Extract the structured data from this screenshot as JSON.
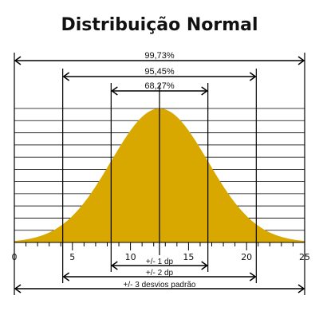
{
  "chart_data": {
    "type": "area",
    "title": "Distribuição Normal",
    "mean": 12.5,
    "sd": 4.167,
    "xlim": [
      0,
      25
    ],
    "x_ticks": [
      0,
      5,
      10,
      15,
      20,
      25
    ],
    "minor_tick_step": 1,
    "grid": true,
    "grid_lines": 11,
    "fill_color": "#D9A800",
    "intervals_top": [
      {
        "k": 3,
        "label": "99,73%"
      },
      {
        "k": 2,
        "label": "95,45%"
      },
      {
        "k": 1,
        "label": "68,27%"
      }
    ],
    "intervals_bottom": [
      {
        "k": 1,
        "label": "+/- 1 dp"
      },
      {
        "k": 2,
        "label": "+/- 2 dp"
      },
      {
        "k": 3,
        "label": "+/- 3 desvios padrão"
      }
    ]
  }
}
